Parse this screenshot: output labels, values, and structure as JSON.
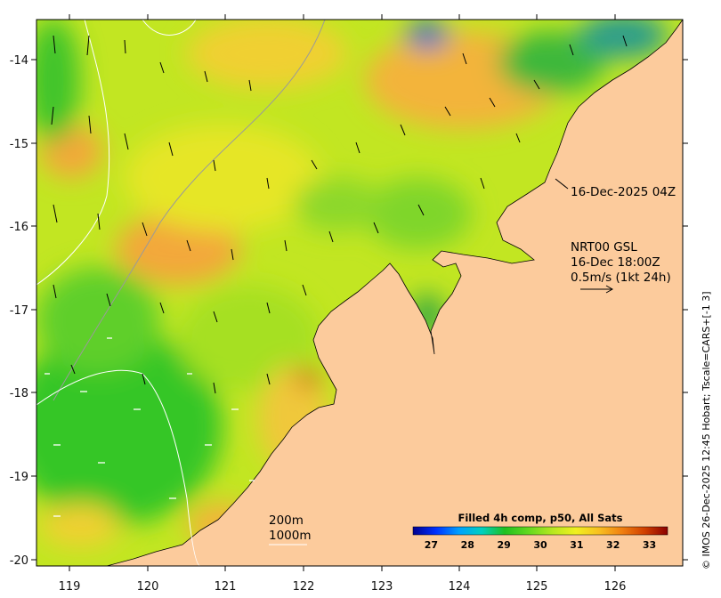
{
  "map": {
    "lon_ticks": [
      "119",
      "120",
      "121",
      "122",
      "123",
      "124",
      "125",
      "126"
    ],
    "lat_ticks": [
      "-14",
      "-15",
      "-16",
      "-17",
      "-18",
      "-19",
      "-20"
    ],
    "colors": {
      "land": "#fccb9c",
      "warm": "#f7a23a",
      "mid": "#a8e024",
      "cool": "#2ec41e",
      "cold": "#1a9ad8"
    }
  },
  "annotations": {
    "pass_time": "16-Dec-2025 04Z",
    "model_name": "NRT00 GSL",
    "model_time": "16-Dec 18:00Z",
    "vector_scale": "0.5m/s (1kt 24h)",
    "contour_200": "200m",
    "contour_1000": "1000m"
  },
  "colorbar": {
    "title": "Filled 4h comp, p50, All Sats",
    "ticks": [
      "27",
      "28",
      "29",
      "30",
      "31",
      "32",
      "33"
    ],
    "range": [
      26.5,
      33.5
    ],
    "stops": [
      "#00008f",
      "#0030ff",
      "#00a0ff",
      "#00d0c0",
      "#20c020",
      "#60d820",
      "#b8e820",
      "#f0f020",
      "#f8c020",
      "#f08010",
      "#d04000",
      "#8b0000"
    ]
  },
  "credit": "© IMOS 26-Dec-2025 12:45 Hobart; Tscale=CARS+[-1 3]"
}
